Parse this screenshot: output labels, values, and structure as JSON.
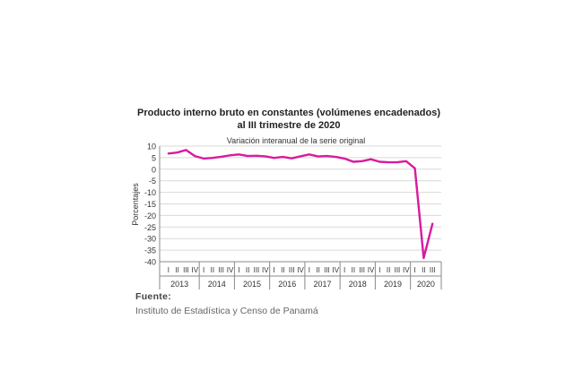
{
  "colors": {
    "line": "#d81b9c",
    "grid": "#d9d9d9",
    "axis": "#888888",
    "text": "#333333"
  },
  "source": {
    "label": "Fuente:",
    "text": "Instituto de Estadística y Censo de Panamá"
  },
  "chart_data": {
    "type": "line",
    "title_line1": "Producto interno bruto en constantes (volúmenes encadenados)",
    "title_line2": "al III trimestre de 2020",
    "subtitle": "Variación interanual de la serie original",
    "ylabel": "Porcentajes",
    "xlabel": "",
    "ylim": [
      -40,
      10
    ],
    "yticks": [
      10,
      5,
      0,
      -5,
      -10,
      -15,
      -20,
      -25,
      -30,
      -35,
      -40
    ],
    "grid": true,
    "legend": "none",
    "quarter_labels": [
      "I",
      "II",
      "III",
      "IV"
    ],
    "years": [
      "2013",
      "2014",
      "2015",
      "2016",
      "2017",
      "2018",
      "2019",
      "2020"
    ],
    "categories": [
      "2013-I",
      "2013-II",
      "2013-III",
      "2013-IV",
      "2014-I",
      "2014-II",
      "2014-III",
      "2014-IV",
      "2015-I",
      "2015-II",
      "2015-III",
      "2015-IV",
      "2016-I",
      "2016-II",
      "2016-III",
      "2016-IV",
      "2017-I",
      "2017-II",
      "2017-III",
      "2017-IV",
      "2018-I",
      "2018-II",
      "2018-III",
      "2018-IV",
      "2019-I",
      "2019-II",
      "2019-III",
      "2019-IV",
      "2020-I",
      "2020-II",
      "2020-III"
    ],
    "values": [
      6.8,
      7.2,
      8.3,
      5.7,
      4.6,
      4.9,
      5.4,
      6.0,
      6.4,
      5.7,
      5.8,
      5.6,
      4.9,
      5.3,
      4.7,
      5.6,
      6.4,
      5.5,
      5.7,
      5.3,
      4.6,
      3.2,
      3.5,
      4.3,
      3.2,
      3.0,
      3.0,
      3.5,
      0.4,
      -38.4,
      -23.6
    ]
  }
}
